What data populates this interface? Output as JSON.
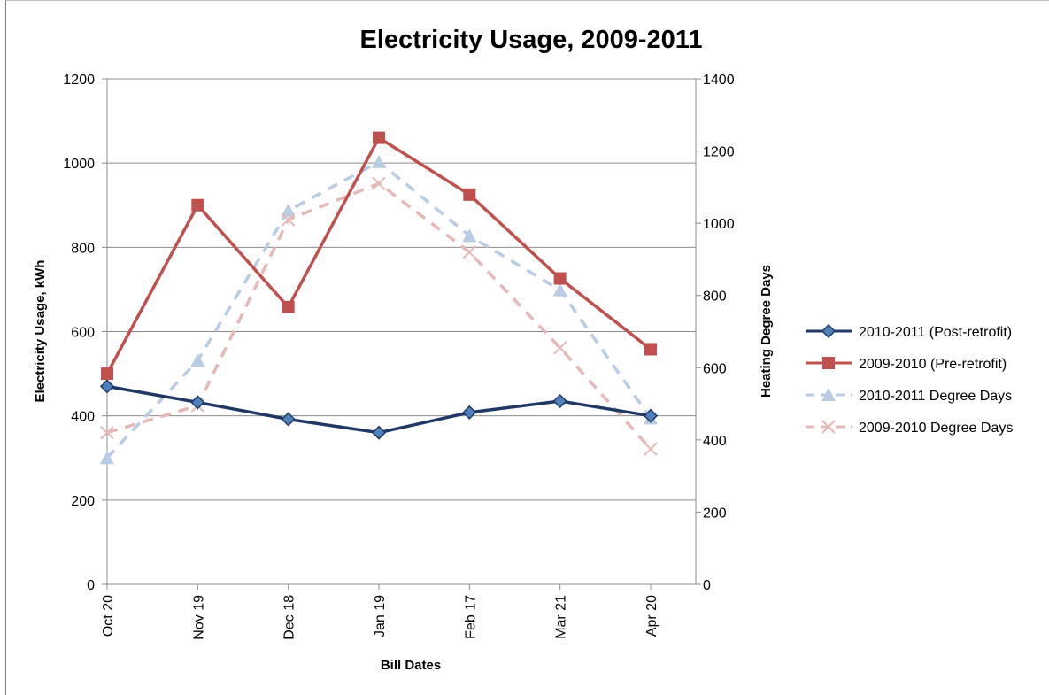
{
  "chart_data": {
    "type": "line",
    "title": "Electricity Usage, 2009-2011",
    "xlabel": "Bill Dates",
    "ylabel": "Electricity Usage, kWh",
    "y2label": "Heating Degree Days",
    "categories": [
      "Oct 20",
      "Nov 19",
      "Dec 18",
      "Jan 19",
      "Feb 17",
      "Mar 21",
      "Apr 20"
    ],
    "ylim": [
      0,
      1200
    ],
    "y2lim": [
      0,
      1400
    ],
    "yticks": [
      "0",
      "200",
      "400",
      "600",
      "800",
      "1000",
      "1200"
    ],
    "y2ticks": [
      "0",
      "200",
      "400",
      "600",
      "800",
      "1000",
      "1200",
      "1400"
    ],
    "grid": "horizontal",
    "legend_position": "right",
    "series": [
      {
        "name": "2010-2011 (Post-retrofit)",
        "axis": "left",
        "style": "solid",
        "marker": "diamond",
        "color": "#1f3864",
        "values": [
          470,
          432,
          392,
          360,
          408,
          435,
          400
        ]
      },
      {
        "name": "2009-2010 (Pre-retrofit)",
        "axis": "left",
        "style": "solid",
        "marker": "square",
        "color": "#c0504d",
        "values": [
          500,
          900,
          658,
          1060,
          925,
          726,
          558
        ]
      },
      {
        "name": "2010-2011 Degree Days",
        "axis": "right",
        "style": "dashed",
        "marker": "triangle",
        "color": "#b8cce4",
        "values": [
          350,
          620,
          1035,
          1170,
          965,
          815,
          460
        ]
      },
      {
        "name": "2009-2010 Degree Days",
        "axis": "right",
        "style": "dashed",
        "marker": "x",
        "color": "#e6b9b8",
        "values": [
          420,
          495,
          1010,
          1110,
          920,
          655,
          375
        ]
      }
    ]
  }
}
